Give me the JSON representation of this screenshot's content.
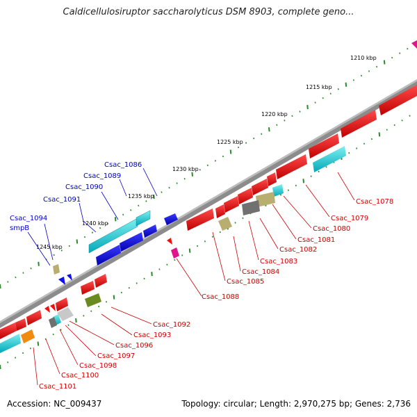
{
  "title": "Caldicellulosiruptor saccharolyticus DSM 8903, complete geno...",
  "footer": {
    "accession": "Accession: NC_009437",
    "stats": "Topology: circular; Length: 2,970,275 bp; Genes: 2,736"
  },
  "colors": {
    "backbone": "#8c8c8c",
    "tick": "#2a8a2a",
    "forward_label": "#0000cc",
    "reverse_label": "#cc0000"
  },
  "ticks": [
    "1210 kbp",
    "1215 kbp",
    "1220 kbp",
    "1225 kbp",
    "1230 kbp",
    "1235 kbp",
    "1240 kbp",
    "1245 kbp"
  ],
  "forward_labels": [
    "Csac_1086",
    "Csac_1089",
    "Csac_1090",
    "Csac_1091",
    "Csac_1094",
    "smpB"
  ],
  "reverse_labels": [
    "Csac_1078",
    "Csac_1079",
    "Csac_1080",
    "Csac_1081",
    "Csac_1082",
    "Csac_1083",
    "Csac_1084",
    "Csac_1085",
    "Csac_1088",
    "Csac_1092",
    "Csac_1093",
    "Csac_1096",
    "Csac_1097",
    "Csac_1098",
    "Csac_1100",
    "Csac_1101"
  ]
}
